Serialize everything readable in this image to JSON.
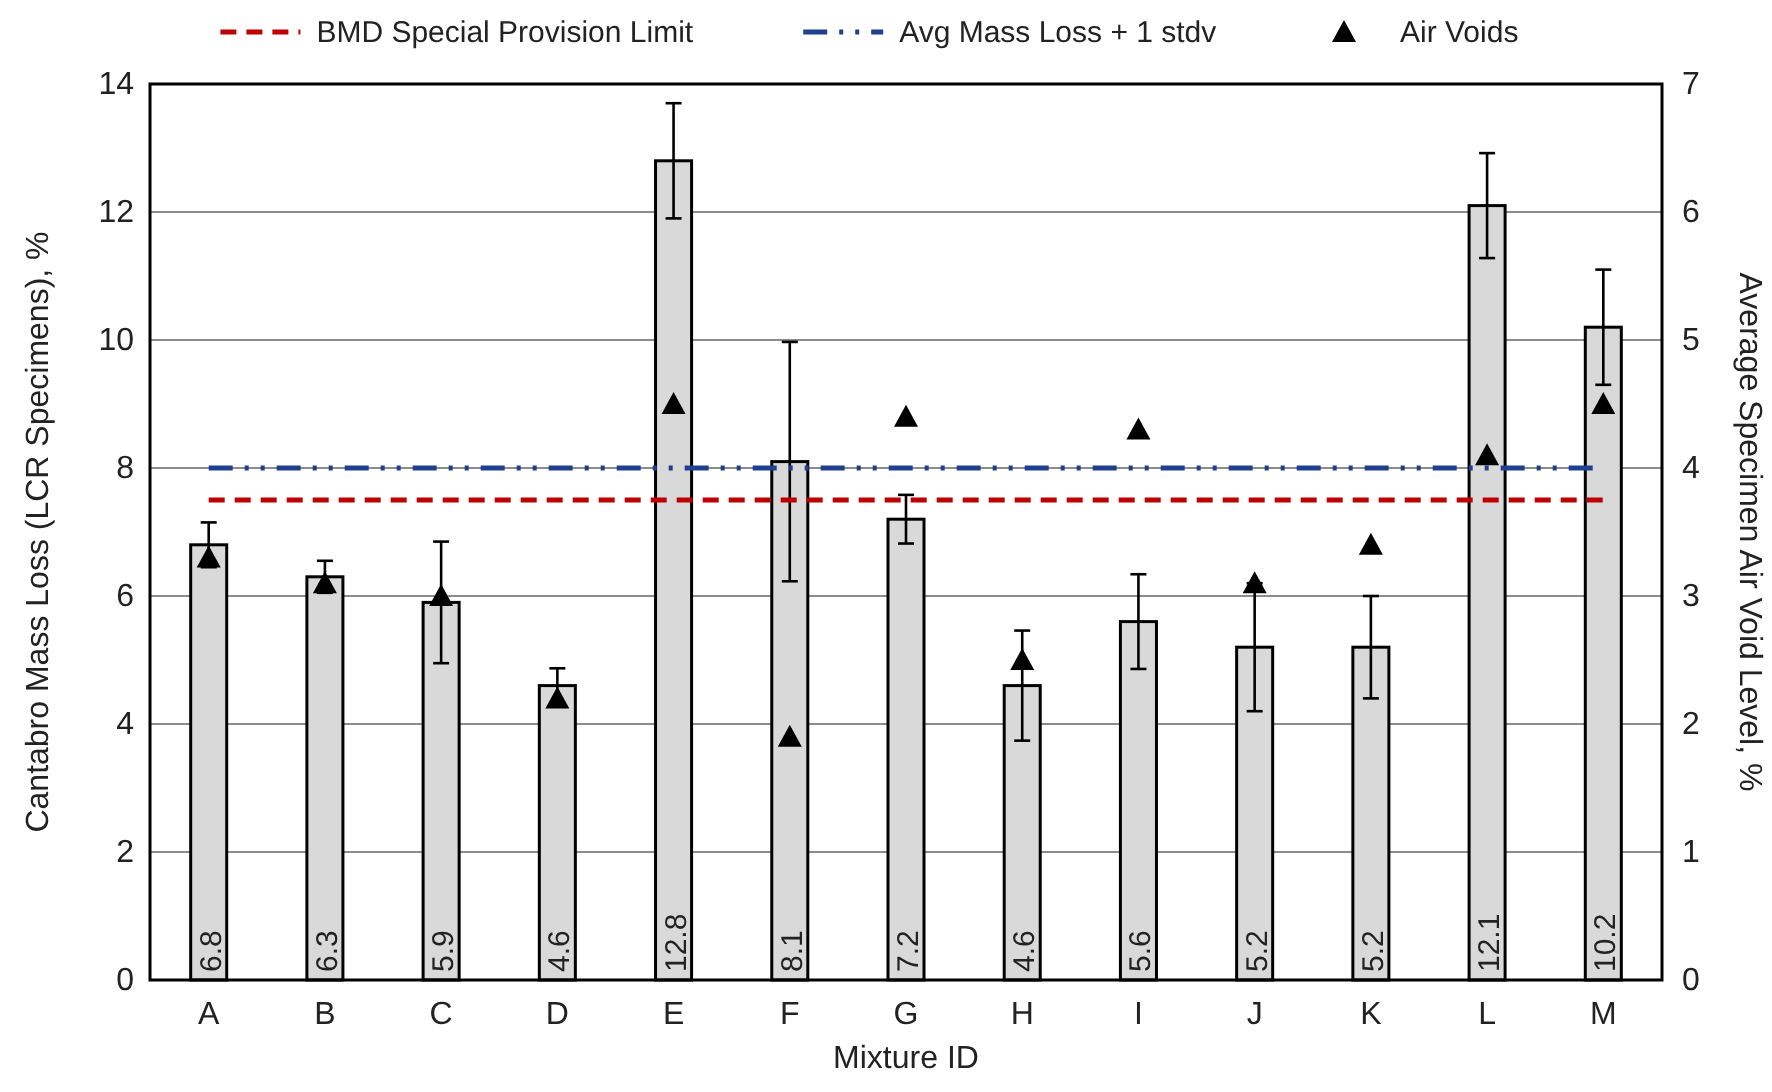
{
  "chart_data": {
    "type": "bar",
    "xlabel": "Mixture ID",
    "ylabel": "Cantabro Mass Loss (LCR Specimens), %",
    "y2label": "Average Specimen Air Void Level, %",
    "categories": [
      "A",
      "B",
      "C",
      "D",
      "E",
      "F",
      "G",
      "H",
      "I",
      "J",
      "K",
      "L",
      "M"
    ],
    "series": [
      {
        "color": "#d9d9d9",
        "values": [
          6.8,
          6.3,
          5.9,
          4.6,
          12.8,
          8.1,
          7.2,
          4.6,
          5.6,
          5.2,
          5.2,
          12.1,
          10.2
        ],
        "errors": [
          0.35,
          0.25,
          0.95,
          0.27,
          0.9,
          1.87,
          0.38,
          0.86,
          0.74,
          1.0,
          0.8,
          0.82,
          0.9
        ],
        "data_labels": true
      },
      {
        "type": "scatter",
        "name": "Air Voids",
        "axis": "y2",
        "color": "#000000",
        "marker": "triangle",
        "x": [
          "A",
          "B",
          "C",
          "D",
          "E",
          "F",
          "G",
          "H",
          "I",
          "J",
          "K",
          "L",
          "M"
        ],
        "values": [
          3.3,
          3.1,
          3.0,
          2.2,
          4.5,
          1.9,
          4.4,
          2.5,
          4.3,
          3.1,
          3.4,
          4.1,
          4.5
        ]
      }
    ],
    "ref_lines": [
      {
        "axis": "y",
        "value": 7.5,
        "label": "BMD Special Provision Limit",
        "color": "#c00000",
        "line_style": "dashed"
      },
      {
        "axis": "y",
        "value": 8,
        "label": "Avg Mass Loss + 1 stdv",
        "color": "#1f3f8f",
        "line_style": "dashdotdot"
      }
    ],
    "ylim": [
      0,
      14
    ],
    "yticks": [
      0,
      2,
      4,
      6,
      8,
      10,
      12,
      14
    ],
    "y2lim": [
      0,
      7
    ],
    "y2ticks": [
      0,
      1,
      2,
      3,
      4,
      5,
      6,
      7
    ],
    "grid": "y",
    "legend": "top"
  }
}
